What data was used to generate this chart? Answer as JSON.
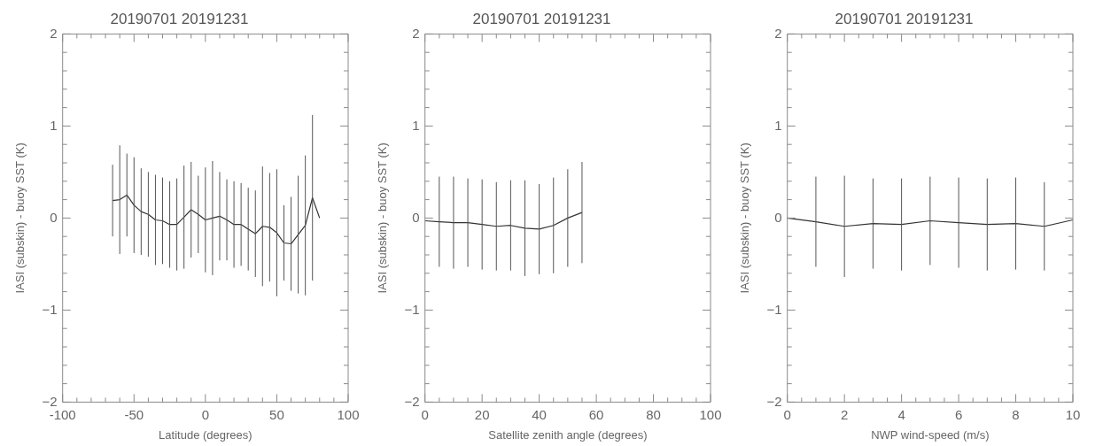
{
  "chart_data": [
    {
      "type": "line",
      "title": "20190701 20191231",
      "xlabel": "Latitude (degrees)",
      "ylabel": "IASI (subskin) - buoy SST (K)",
      "marker": "none",
      "grid": false,
      "x": [
        -65,
        -60,
        -55,
        -50,
        -45,
        -40,
        -35,
        -30,
        -25,
        -20,
        -15,
        -10,
        -5,
        0,
        5,
        10,
        15,
        20,
        25,
        30,
        35,
        40,
        45,
        50,
        55,
        60,
        65,
        70,
        75,
        80
      ],
      "series": [
        {
          "color": "#333333",
          "values": [
            0.19,
            0.2,
            0.25,
            0.14,
            0.07,
            0.04,
            -0.02,
            -0.03,
            -0.07,
            -0.07,
            0.01,
            0.09,
            0.04,
            -0.02,
            0.0,
            0.02,
            -0.02,
            -0.07,
            -0.07,
            -0.12,
            -0.17,
            -0.09,
            -0.1,
            -0.16,
            -0.27,
            -0.28,
            -0.18,
            -0.08,
            0.22,
            0.0
          ],
          "errors": [
            0.39,
            0.59,
            0.45,
            0.52,
            0.47,
            0.46,
            0.49,
            0.47,
            0.47,
            0.5,
            0.56,
            0.52,
            0.42,
            0.57,
            0.62,
            0.48,
            0.44,
            0.47,
            0.45,
            0.45,
            0.47,
            0.65,
            0.59,
            0.69,
            0.41,
            0.51,
            0.64,
            0.76,
            0.9,
            null
          ]
        }
      ],
      "xlim": [
        -100,
        100
      ],
      "xticks": [
        -100,
        {
          "value": -90,
          "label": null
        },
        {
          "value": -80,
          "label": null
        },
        {
          "value": -70,
          "label": null
        },
        {
          "value": -60,
          "label": null
        },
        -50,
        {
          "value": -40,
          "label": null
        },
        {
          "value": -30,
          "label": null
        },
        {
          "value": -20,
          "label": null
        },
        {
          "value": -10,
          "label": null
        },
        0,
        {
          "value": 10,
          "label": null
        },
        {
          "value": 20,
          "label": null
        },
        {
          "value": 30,
          "label": null
        },
        {
          "value": 40,
          "label": null
        },
        50,
        {
          "value": 60,
          "label": null
        },
        {
          "value": 70,
          "label": null
        },
        {
          "value": 80,
          "label": null
        },
        {
          "value": 90,
          "label": null
        },
        100
      ],
      "ylim": [
        -2,
        2
      ],
      "yticks": [
        -2,
        {
          "value": -1.8,
          "label": null
        },
        {
          "value": -1.6,
          "label": null
        },
        {
          "value": -1.4,
          "label": null
        },
        {
          "value": -1.2,
          "label": null
        },
        -1,
        {
          "value": -0.8,
          "label": null
        },
        {
          "value": -0.6,
          "label": null
        },
        {
          "value": -0.4,
          "label": null
        },
        {
          "value": -0.2,
          "label": null
        },
        0,
        {
          "value": 0.2,
          "label": null
        },
        {
          "value": 0.4,
          "label": null
        },
        {
          "value": 0.6,
          "label": null
        },
        {
          "value": 0.8,
          "label": null
        },
        1,
        {
          "value": 1.2,
          "label": null
        },
        {
          "value": 1.4,
          "label": null
        },
        {
          "value": 1.6,
          "label": null
        },
        {
          "value": 1.8,
          "label": null
        },
        2
      ]
    },
    {
      "type": "line",
      "title": "20190701 20191231",
      "xlabel": "Satellite zenith angle (degrees)",
      "ylabel": "IASI (subskin) - buoy SST (K)",
      "marker": "none",
      "grid": false,
      "x": [
        0,
        5,
        10,
        15,
        20,
        25,
        30,
        35,
        40,
        45,
        50,
        55
      ],
      "series": [
        {
          "color": "#333333",
          "values": [
            -0.03,
            -0.04,
            -0.05,
            -0.05,
            -0.07,
            -0.09,
            -0.08,
            -0.11,
            -0.12,
            -0.08,
            0.0,
            0.06
          ],
          "errors": [
            null,
            0.49,
            0.5,
            0.48,
            0.49,
            0.48,
            0.49,
            0.52,
            0.49,
            0.52,
            0.53,
            0.55
          ]
        }
      ],
      "xlim": [
        0,
        100
      ],
      "xticks": [
        0,
        {
          "value": 5,
          "label": null
        },
        {
          "value": 10,
          "label": null
        },
        {
          "value": 15,
          "label": null
        },
        20,
        {
          "value": 25,
          "label": null
        },
        {
          "value": 30,
          "label": null
        },
        {
          "value": 35,
          "label": null
        },
        40,
        {
          "value": 45,
          "label": null
        },
        {
          "value": 50,
          "label": null
        },
        {
          "value": 55,
          "label": null
        },
        60,
        {
          "value": 65,
          "label": null
        },
        {
          "value": 70,
          "label": null
        },
        {
          "value": 75,
          "label": null
        },
        80,
        {
          "value": 85,
          "label": null
        },
        {
          "value": 90,
          "label": null
        },
        {
          "value": 95,
          "label": null
        },
        100
      ],
      "ylim": [
        -2,
        2
      ],
      "yticks": [
        -2,
        {
          "value": -1.8,
          "label": null
        },
        {
          "value": -1.6,
          "label": null
        },
        {
          "value": -1.4,
          "label": null
        },
        {
          "value": -1.2,
          "label": null
        },
        -1,
        {
          "value": -0.8,
          "label": null
        },
        {
          "value": -0.6,
          "label": null
        },
        {
          "value": -0.4,
          "label": null
        },
        {
          "value": -0.2,
          "label": null
        },
        0,
        {
          "value": 0.2,
          "label": null
        },
        {
          "value": 0.4,
          "label": null
        },
        {
          "value": 0.6,
          "label": null
        },
        {
          "value": 0.8,
          "label": null
        },
        1,
        {
          "value": 1.2,
          "label": null
        },
        {
          "value": 1.4,
          "label": null
        },
        {
          "value": 1.6,
          "label": null
        },
        {
          "value": 1.8,
          "label": null
        },
        2
      ]
    },
    {
      "type": "line",
      "title": "20190701 20191231",
      "xlabel": "NWP wind-speed (m/s)",
      "ylabel": "IASI (subskin) - buoy SST (K)",
      "marker": "none",
      "grid": false,
      "x": [
        0,
        1,
        2,
        3,
        4,
        5,
        6,
        7,
        8,
        9,
        10
      ],
      "series": [
        {
          "color": "#333333",
          "values": [
            0.0,
            -0.04,
            -0.09,
            -0.06,
            -0.07,
            -0.03,
            -0.05,
            -0.07,
            -0.06,
            -0.09,
            -0.02
          ],
          "errors": [
            null,
            0.49,
            0.55,
            0.49,
            0.5,
            0.48,
            0.49,
            0.5,
            0.5,
            0.48,
            null
          ]
        }
      ],
      "xlim": [
        0,
        10
      ],
      "xticks": [
        0,
        {
          "value": 0.5,
          "label": null
        },
        {
          "value": 1,
          "label": null
        },
        {
          "value": 1.5,
          "label": null
        },
        2,
        {
          "value": 2.5,
          "label": null
        },
        {
          "value": 3,
          "label": null
        },
        {
          "value": 3.5,
          "label": null
        },
        4,
        {
          "value": 4.5,
          "label": null
        },
        {
          "value": 5,
          "label": null
        },
        {
          "value": 5.5,
          "label": null
        },
        6,
        {
          "value": 6.5,
          "label": null
        },
        {
          "value": 7,
          "label": null
        },
        {
          "value": 7.5,
          "label": null
        },
        8,
        {
          "value": 8.5,
          "label": null
        },
        {
          "value": 9,
          "label": null
        },
        {
          "value": 9.5,
          "label": null
        },
        10
      ],
      "ylim": [
        -2,
        2
      ],
      "yticks": [
        -2,
        {
          "value": -1.8,
          "label": null
        },
        {
          "value": -1.6,
          "label": null
        },
        {
          "value": -1.4,
          "label": null
        },
        {
          "value": -1.2,
          "label": null
        },
        -1,
        {
          "value": -0.8,
          "label": null
        },
        {
          "value": -0.6,
          "label": null
        },
        {
          "value": -0.4,
          "label": null
        },
        {
          "value": -0.2,
          "label": null
        },
        0,
        {
          "value": 0.2,
          "label": null
        },
        {
          "value": 0.4,
          "label": null
        },
        {
          "value": 0.6,
          "label": null
        },
        {
          "value": 0.8,
          "label": null
        },
        1,
        {
          "value": 1.2,
          "label": null
        },
        {
          "value": 1.4,
          "label": null
        },
        {
          "value": 1.6,
          "label": null
        },
        {
          "value": 1.8,
          "label": null
        },
        2
      ]
    }
  ]
}
